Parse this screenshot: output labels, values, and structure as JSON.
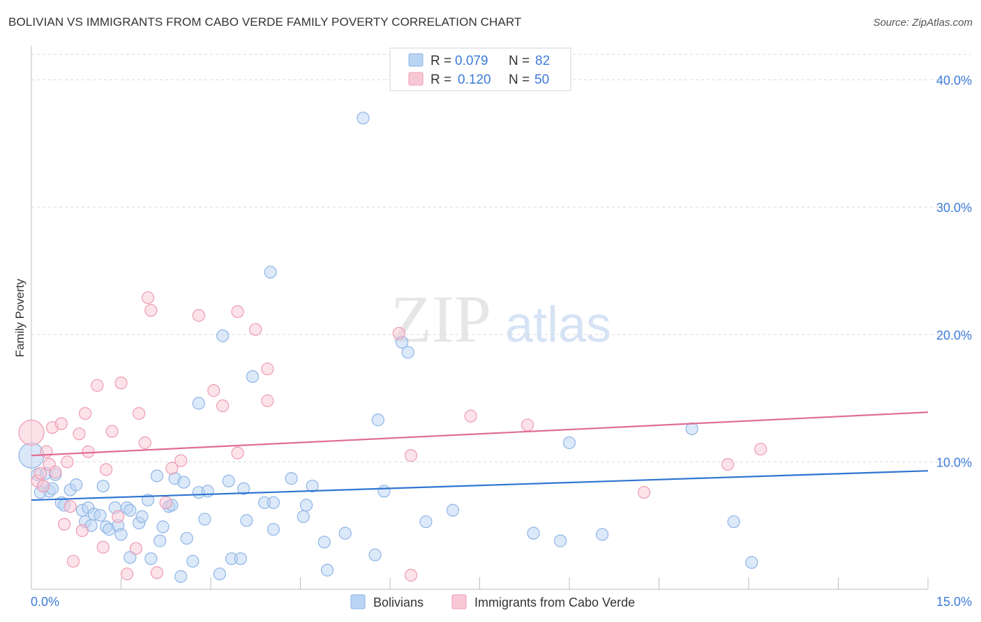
{
  "title": "BOLIVIAN VS IMMIGRANTS FROM CABO VERDE FAMILY POVERTY CORRELATION CHART",
  "source": "Source: ZipAtlas.com",
  "colors": {
    "blue_fill": "#b9d3f3",
    "blue_stroke": "#8fb5e6",
    "blue_line": "#2f74d0",
    "pink_fill": "#f9c8d6",
    "pink_stroke": "#ee9ab2",
    "pink_line": "#e06c92",
    "axis_text": "#3d7bd9",
    "grid": "#d9d9d9"
  },
  "legend": {
    "rows": [
      {
        "r_label": "R =",
        "r_value": "0.079",
        "n_label": "N =",
        "n_value": "82"
      },
      {
        "r_label": "R =",
        "r_value": "0.120",
        "n_label": "N =",
        "n_value": "50"
      }
    ]
  },
  "watermark": {
    "zip": "ZIP",
    "atlas": "atlas"
  },
  "chart_data": {
    "type": "scatter",
    "title": "BOLIVIAN VS IMMIGRANTS FROM CABO VERDE FAMILY POVERTY CORRELATION CHART",
    "xlabel": "",
    "ylabel": "Family Poverty",
    "xlim": [
      0,
      15
    ],
    "ylim": [
      0,
      42
    ],
    "x_tick_labels": [
      "0.0%",
      "15.0%"
    ],
    "y_ticks": [
      10,
      20,
      30,
      40
    ],
    "y_tick_labels": [
      "10.0%",
      "20.0%",
      "30.0%",
      "40.0%"
    ],
    "grid": true,
    "legend_position": "bottom",
    "series": [
      {
        "name": "Bolivians",
        "r": 0.079,
        "n": 82,
        "trend": {
          "x": [
            0,
            15
          ],
          "y": [
            7.0,
            9.3
          ]
        },
        "points": [
          [
            0.0,
            10.5
          ],
          [
            0.1,
            9.0
          ],
          [
            0.15,
            7.6
          ],
          [
            0.2,
            8.1
          ],
          [
            0.25,
            9.1
          ],
          [
            0.3,
            7.7
          ],
          [
            0.35,
            7.9
          ],
          [
            0.4,
            9.0
          ],
          [
            0.5,
            6.8
          ],
          [
            0.55,
            6.6
          ],
          [
            0.65,
            7.8
          ],
          [
            0.75,
            8.2
          ],
          [
            0.85,
            6.2
          ],
          [
            0.9,
            5.3
          ],
          [
            0.95,
            6.4
          ],
          [
            1.0,
            5.0
          ],
          [
            1.05,
            5.9
          ],
          [
            1.15,
            5.8
          ],
          [
            1.2,
            8.1
          ],
          [
            1.25,
            4.9
          ],
          [
            1.3,
            4.7
          ],
          [
            1.4,
            6.4
          ],
          [
            1.45,
            5.0
          ],
          [
            1.5,
            4.3
          ],
          [
            1.6,
            6.4
          ],
          [
            1.65,
            6.2
          ],
          [
            1.65,
            2.5
          ],
          [
            1.8,
            5.2
          ],
          [
            1.85,
            5.7
          ],
          [
            1.95,
            7.0
          ],
          [
            2.0,
            2.4
          ],
          [
            2.1,
            8.9
          ],
          [
            2.15,
            3.8
          ],
          [
            2.2,
            4.9
          ],
          [
            2.3,
            6.5
          ],
          [
            2.35,
            6.6
          ],
          [
            2.4,
            8.7
          ],
          [
            2.5,
            1.0
          ],
          [
            2.55,
            8.4
          ],
          [
            2.6,
            4.0
          ],
          [
            2.7,
            2.2
          ],
          [
            2.8,
            7.6
          ],
          [
            2.8,
            14.6
          ],
          [
            2.9,
            5.5
          ],
          [
            2.95,
            7.7
          ],
          [
            3.15,
            1.2
          ],
          [
            3.2,
            19.9
          ],
          [
            3.3,
            8.5
          ],
          [
            3.35,
            2.4
          ],
          [
            3.5,
            2.4
          ],
          [
            3.55,
            7.9
          ],
          [
            3.6,
            5.4
          ],
          [
            3.7,
            16.7
          ],
          [
            3.9,
            6.8
          ],
          [
            4.0,
            24.9
          ],
          [
            4.05,
            6.8
          ],
          [
            4.05,
            4.7
          ],
          [
            4.35,
            8.7
          ],
          [
            4.55,
            5.7
          ],
          [
            4.6,
            6.6
          ],
          [
            4.7,
            8.1
          ],
          [
            4.9,
            3.7
          ],
          [
            4.95,
            1.5
          ],
          [
            5.25,
            4.4
          ],
          [
            5.55,
            37.0
          ],
          [
            5.75,
            2.7
          ],
          [
            5.8,
            13.3
          ],
          [
            5.9,
            7.7
          ],
          [
            6.2,
            19.4
          ],
          [
            6.3,
            18.6
          ],
          [
            6.6,
            5.3
          ],
          [
            7.05,
            6.2
          ],
          [
            8.4,
            4.4
          ],
          [
            8.85,
            3.8
          ],
          [
            9.0,
            11.5
          ],
          [
            9.55,
            4.3
          ],
          [
            11.05,
            12.6
          ],
          [
            11.75,
            5.3
          ],
          [
            12.05,
            2.1
          ]
        ]
      },
      {
        "name": "Immigrants from Cabo Verde",
        "r": 0.12,
        "n": 50,
        "trend": {
          "x": [
            0,
            15
          ],
          "y": [
            10.5,
            13.9
          ]
        },
        "points": [
          [
            0.0,
            12.3
          ],
          [
            0.1,
            8.5
          ],
          [
            0.15,
            9.1
          ],
          [
            0.2,
            8.1
          ],
          [
            0.25,
            10.8
          ],
          [
            0.3,
            9.8
          ],
          [
            0.35,
            12.7
          ],
          [
            0.4,
            9.2
          ],
          [
            0.5,
            13.0
          ],
          [
            0.55,
            5.1
          ],
          [
            0.6,
            10.0
          ],
          [
            0.65,
            6.5
          ],
          [
            0.7,
            2.2
          ],
          [
            0.8,
            12.2
          ],
          [
            0.85,
            4.6
          ],
          [
            0.9,
            13.8
          ],
          [
            0.95,
            10.8
          ],
          [
            1.1,
            16.0
          ],
          [
            1.2,
            3.3
          ],
          [
            1.25,
            9.4
          ],
          [
            1.35,
            12.4
          ],
          [
            1.45,
            5.7
          ],
          [
            1.5,
            16.2
          ],
          [
            1.6,
            1.2
          ],
          [
            1.75,
            3.2
          ],
          [
            1.8,
            13.8
          ],
          [
            1.9,
            11.5
          ],
          [
            1.95,
            22.9
          ],
          [
            2.0,
            21.9
          ],
          [
            2.1,
            1.3
          ],
          [
            2.25,
            6.8
          ],
          [
            2.35,
            9.5
          ],
          [
            2.5,
            10.1
          ],
          [
            2.8,
            21.5
          ],
          [
            3.05,
            15.6
          ],
          [
            3.2,
            14.4
          ],
          [
            3.45,
            10.7
          ],
          [
            3.45,
            21.8
          ],
          [
            3.75,
            20.4
          ],
          [
            3.95,
            17.3
          ],
          [
            3.95,
            14.8
          ],
          [
            6.15,
            20.1
          ],
          [
            6.35,
            10.5
          ],
          [
            6.35,
            1.1
          ],
          [
            7.35,
            13.6
          ],
          [
            8.3,
            12.9
          ],
          [
            10.25,
            7.6
          ],
          [
            11.65,
            9.8
          ],
          [
            12.2,
            11.0
          ]
        ]
      }
    ]
  }
}
